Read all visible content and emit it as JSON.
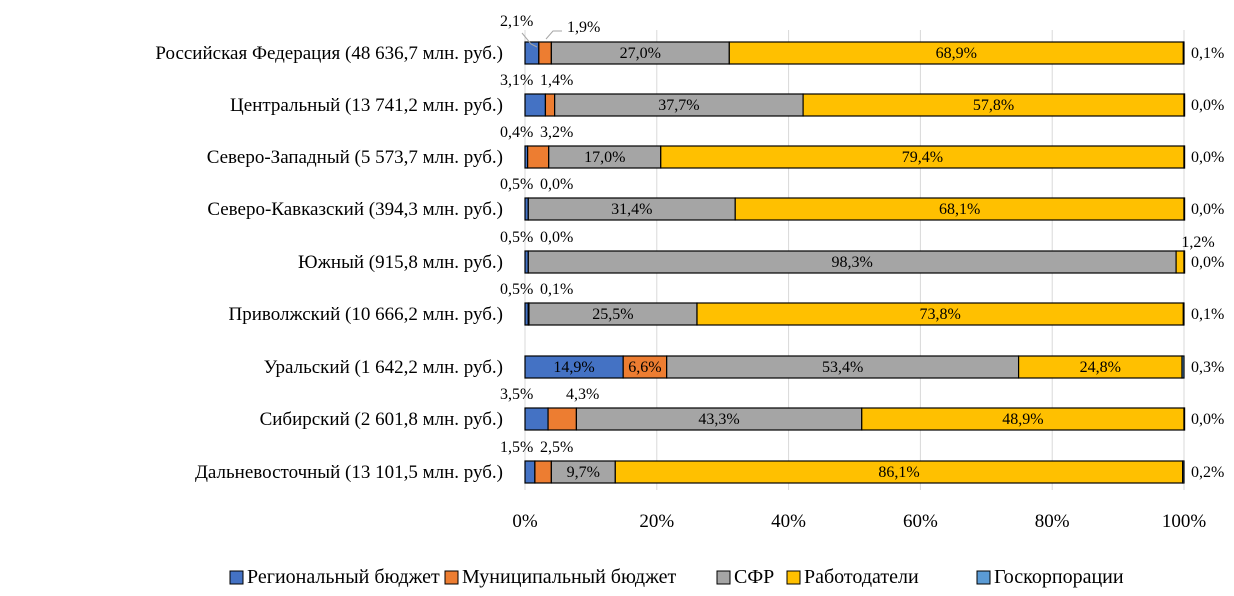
{
  "chart_data": {
    "type": "bar",
    "stacked": true,
    "orientation": "horizontal",
    "title": "",
    "xlabel": "",
    "ylabel": "",
    "xlim": [
      0,
      100
    ],
    "x_ticks": [
      "0%",
      "20%",
      "40%",
      "60%",
      "80%",
      "100%"
    ],
    "grid": "vertical",
    "legend_position": "bottom",
    "categories": [
      "Российская Федерация (48 636,7 млн. руб.)",
      "Центральный (13 741,2 млн. руб.)",
      "Северо-Западный (5 573,7 млн. руб.)",
      "Северо-Кавказский (394,3 млн. руб.)",
      "Южный (915,8 млн. руб.)",
      "Приволжский (10 666,2 млн. руб.)",
      "Уральский (1 642,2 млн. руб.)",
      "Сибирский (2 601,8 млн. руб.)",
      "Дальневосточный (13 101,5 млн. руб.)"
    ],
    "series": [
      {
        "name": "Региональный бюджет",
        "color": "#4472C4",
        "values": [
          2.1,
          3.1,
          0.4,
          0.5,
          0.5,
          0.5,
          14.9,
          3.5,
          1.5
        ],
        "labels": [
          "2,1%",
          "3,1%",
          "0,4%",
          "0,5%",
          "0,5%",
          "0,5%",
          "14,9%",
          "3,5%",
          "1,5%"
        ]
      },
      {
        "name": "Муниципальный бюджет",
        "color": "#ED7D31",
        "values": [
          1.9,
          1.4,
          3.2,
          0.0,
          0.0,
          0.1,
          6.6,
          4.3,
          2.5
        ],
        "labels": [
          "1,9%",
          "1,4%",
          "3,2%",
          "0,0%",
          "0,0%",
          "0,1%",
          "6,6%",
          "4,3%",
          "2,5%"
        ]
      },
      {
        "name": "СФР",
        "color": "#A5A5A5",
        "values": [
          27.0,
          37.7,
          17.0,
          31.4,
          98.3,
          25.5,
          53.4,
          43.3,
          9.7
        ],
        "labels": [
          "27,0%",
          "37,7%",
          "17,0%",
          "31,4%",
          "98,3%",
          "25,5%",
          "53,4%",
          "43,3%",
          "9,7%"
        ]
      },
      {
        "name": "Работодатели",
        "color": "#FFC000",
        "values": [
          68.9,
          57.8,
          79.4,
          68.1,
          1.2,
          73.8,
          24.8,
          48.9,
          86.1
        ],
        "labels": [
          "68,9%",
          "57,8%",
          "79,4%",
          "68,1%",
          "1,2%",
          "73,8%",
          "24,8%",
          "48,9%",
          "86,1%"
        ]
      },
      {
        "name": "Госкорпорации",
        "color": "#5B9BD5",
        "values": [
          0.1,
          0.0,
          0.0,
          0.0,
          0.0,
          0.1,
          0.3,
          0.0,
          0.2
        ],
        "labels": [
          "0,1%",
          "0,0%",
          "0,0%",
          "0,0%",
          "0,0%",
          "0,1%",
          "0,3%",
          "0,0%",
          "0,2%"
        ]
      }
    ]
  }
}
